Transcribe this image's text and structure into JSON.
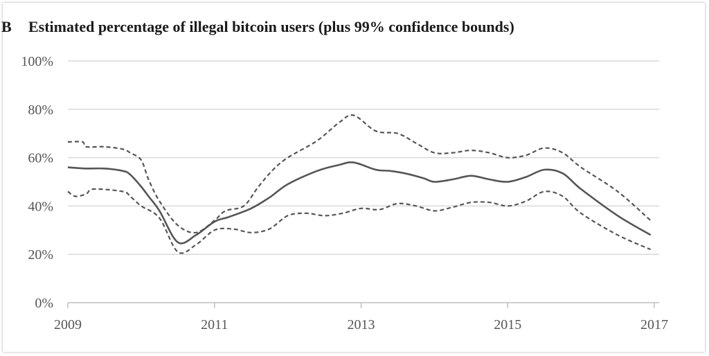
{
  "chart_data": {
    "type": "line",
    "panel_label": "B",
    "title": "Estimated percentage of illegal bitcoin users (plus 99% confidence bounds)",
    "xlabel": "",
    "ylabel": "",
    "xlim": [
      2009,
      2017
    ],
    "ylim": [
      0,
      100
    ],
    "y_ticks": [
      {
        "value": 0,
        "label": "0%"
      },
      {
        "value": 20,
        "label": "20%"
      },
      {
        "value": 40,
        "label": "40%"
      },
      {
        "value": 60,
        "label": "60%"
      },
      {
        "value": 80,
        "label": "80%"
      },
      {
        "value": 100,
        "label": "100%"
      }
    ],
    "x_ticks": [
      {
        "value": 2009,
        "label": "2009"
      },
      {
        "value": 2011,
        "label": "2011"
      },
      {
        "value": 2013,
        "label": "2013"
      },
      {
        "value": 2015,
        "label": "2015"
      },
      {
        "value": 2017,
        "label": "2017"
      }
    ],
    "grid": true,
    "series": [
      {
        "name": "Upper bound (99%)",
        "style": "dashed",
        "color": "#555555",
        "x": [
          2009.0,
          2009.2,
          2009.25,
          2009.5,
          2009.75,
          2009.85,
          2010.0,
          2010.1,
          2010.25,
          2010.5,
          2010.75,
          2011.0,
          2011.15,
          2011.4,
          2011.6,
          2011.8,
          2012.0,
          2012.4,
          2012.7,
          2012.9,
          2013.2,
          2013.5,
          2013.75,
          2014.0,
          2014.25,
          2014.5,
          2014.75,
          2015.0,
          2015.25,
          2015.5,
          2015.75,
          2016.0,
          2016.5,
          2016.95
        ],
        "values": [
          66.5,
          66.5,
          64.5,
          64.5,
          63.5,
          62.0,
          59.0,
          51.0,
          42.0,
          32.0,
          29.0,
          34.0,
          38.0,
          40.0,
          48.0,
          55.0,
          60.0,
          67.0,
          74.5,
          77.5,
          71.0,
          70.0,
          66.0,
          62.0,
          62.0,
          63.0,
          62.0,
          60.0,
          61.0,
          64.0,
          62.0,
          56.0,
          46.0,
          34.0
        ]
      },
      {
        "name": "Estimate",
        "style": "solid",
        "color": "#555555",
        "x": [
          2009.0,
          2009.25,
          2009.5,
          2009.75,
          2009.85,
          2010.0,
          2010.1,
          2010.25,
          2010.5,
          2010.75,
          2011.0,
          2011.2,
          2011.5,
          2011.75,
          2012.0,
          2012.4,
          2012.7,
          2012.9,
          2013.2,
          2013.4,
          2013.6,
          2013.85,
          2014.0,
          2014.25,
          2014.5,
          2014.75,
          2015.0,
          2015.25,
          2015.5,
          2015.75,
          2016.0,
          2016.5,
          2016.95
        ],
        "values": [
          56.0,
          55.5,
          55.5,
          54.5,
          53.0,
          48.0,
          44.0,
          38.0,
          25.0,
          28.0,
          33.5,
          35.5,
          39.0,
          43.5,
          49.0,
          54.5,
          57.0,
          58.0,
          55.0,
          54.5,
          53.5,
          51.5,
          50.0,
          51.0,
          52.5,
          51.0,
          50.0,
          52.0,
          55.0,
          53.5,
          47.0,
          36.0,
          28.0
        ]
      },
      {
        "name": "Lower bound (99%)",
        "style": "dashed",
        "color": "#555555",
        "x": [
          2009.0,
          2009.1,
          2009.25,
          2009.35,
          2009.75,
          2009.85,
          2010.0,
          2010.25,
          2010.5,
          2010.75,
          2011.0,
          2011.25,
          2011.5,
          2011.75,
          2012.0,
          2012.25,
          2012.5,
          2012.75,
          2013.0,
          2013.25,
          2013.5,
          2013.75,
          2014.0,
          2014.25,
          2014.5,
          2014.75,
          2015.0,
          2015.25,
          2015.5,
          2015.75,
          2016.0,
          2016.5,
          2016.95
        ],
        "values": [
          46.0,
          44.0,
          45.0,
          47.0,
          46.0,
          44.0,
          40.0,
          35.0,
          21.0,
          24.0,
          30.0,
          30.5,
          29.0,
          30.5,
          36.0,
          37.0,
          36.0,
          37.0,
          39.0,
          38.5,
          41.0,
          40.0,
          38.0,
          39.5,
          41.5,
          41.5,
          40.0,
          42.0,
          46.0,
          44.0,
          37.0,
          28.0,
          22.0
        ]
      }
    ]
  }
}
